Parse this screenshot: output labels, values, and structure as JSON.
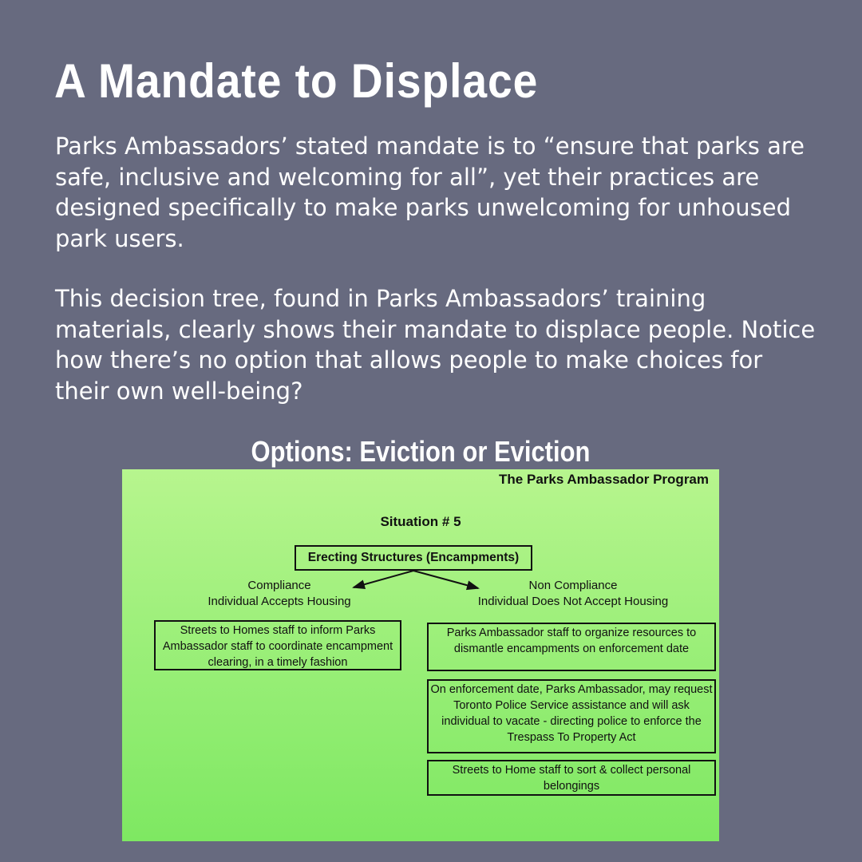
{
  "title": "A Mandate to Displace",
  "paragraphs": [
    "Parks Ambassadors’ stated mandate is to “ensure that parks are safe, inclusive and welcoming for all”, yet their practices are designed specifically to make parks unwelcoming for unhoused park users.",
    "This decision tree, found in Parks Ambassadors’ training materials, clearly shows their mandate to displace people. Notice how there’s no option that allows people to make choices for their own well-being?"
  ],
  "options_heading": "Options: Eviction or Eviction",
  "slide": {
    "program_title": "The Parks Ambassador Program",
    "situation": "Situation # 5",
    "root": "Erecting Structures (Encampments)",
    "left_branch": {
      "line1": "Compliance",
      "line2": "Individual Accepts Housing",
      "box": "Streets to Homes staff to inform Parks Ambassador staff to coordinate encampment clearing, in a timely fashion"
    },
    "right_branch": {
      "line1": "Non Compliance",
      "line2": "Individual Does Not Accept Housing",
      "boxes": [
        "Parks Ambassador staff to organize resources to dismantle encampments on enforcement date",
        "On enforcement date, Parks Ambassador, may request Toronto Police Service assistance and will ask individual to vacate - directing police to enforce the Trespass To Property Act",
        "Streets to Home staff to sort & collect personal belongings"
      ]
    }
  },
  "colors": {
    "background": "#676a7f",
    "slide_green": "#9ff07c",
    "text": "#ffffff"
  }
}
